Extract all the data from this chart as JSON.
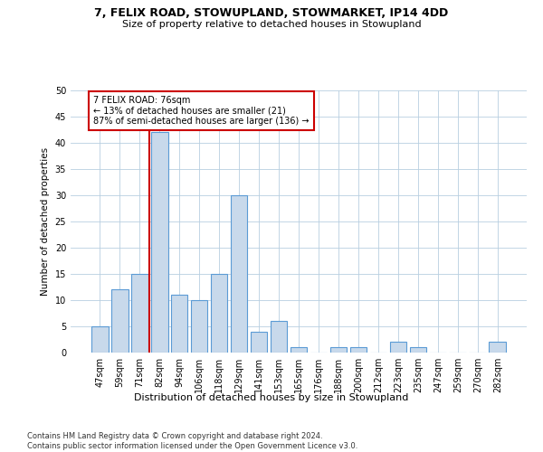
{
  "title1": "7, FELIX ROAD, STOWUPLAND, STOWMARKET, IP14 4DD",
  "title2": "Size of property relative to detached houses in Stowupland",
  "xlabel": "Distribution of detached houses by size in Stowupland",
  "ylabel": "Number of detached properties",
  "categories": [
    "47sqm",
    "59sqm",
    "71sqm",
    "82sqm",
    "94sqm",
    "106sqm",
    "118sqm",
    "129sqm",
    "141sqm",
    "153sqm",
    "165sqm",
    "176sqm",
    "188sqm",
    "200sqm",
    "212sqm",
    "223sqm",
    "235sqm",
    "247sqm",
    "259sqm",
    "270sqm",
    "282sqm"
  ],
  "values": [
    5,
    12,
    15,
    42,
    11,
    10,
    15,
    30,
    4,
    6,
    1,
    0,
    1,
    1,
    0,
    2,
    1,
    0,
    0,
    0,
    2
  ],
  "bar_color": "#c8d9eb",
  "bar_edge_color": "#5b9bd5",
  "vline_x_idx": 2.5,
  "vline_color": "#cc0000",
  "annotation_line1": "7 FELIX ROAD: 76sqm",
  "annotation_line2": "← 13% of detached houses are smaller (21)",
  "annotation_line3": "87% of semi-detached houses are larger (136) →",
  "annotation_box_color": "#ffffff",
  "annotation_box_edge": "#cc0000",
  "ylim": [
    0,
    50
  ],
  "yticks": [
    0,
    5,
    10,
    15,
    20,
    25,
    30,
    35,
    40,
    45,
    50
  ],
  "footer": "Contains HM Land Registry data © Crown copyright and database right 2024.\nContains public sector information licensed under the Open Government Licence v3.0.",
  "bg_color": "#ffffff",
  "grid_color": "#b8cfe0"
}
